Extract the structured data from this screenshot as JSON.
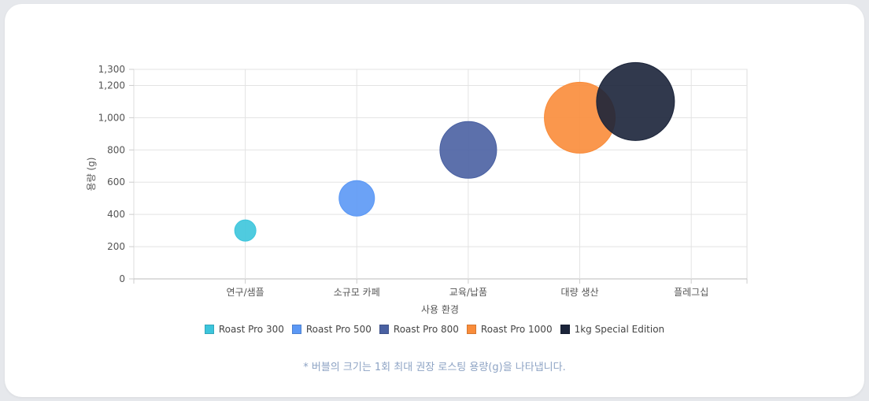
{
  "chart_data": {
    "type": "bubble",
    "xlabel": "사용 환경",
    "ylabel": "용량 (g)",
    "categories": [
      "연구/샘플",
      "소규모 카페",
      "교육/납품",
      "대량 생산",
      "플레그십"
    ],
    "ylim": [
      0,
      1300
    ],
    "yticks": [
      "0",
      "200",
      "400",
      "600",
      "800",
      "1,000",
      "1,200",
      "1,300"
    ],
    "ytick_values": [
      0,
      200,
      400,
      600,
      800,
      1000,
      1200,
      1300
    ],
    "grid": true,
    "legend_position": "bottom",
    "series": [
      {
        "name": "Roast Pro 300",
        "x": 1,
        "y": 300,
        "color": "#3cc5dc"
      },
      {
        "name": "Roast Pro 500",
        "x": 2,
        "y": 500,
        "color": "#5b98f5"
      },
      {
        "name": "Roast Pro 800",
        "x": 3,
        "y": 800,
        "color": "#4a61a2"
      },
      {
        "name": "Roast Pro 1000",
        "x": 4,
        "y": 1000,
        "color": "#f98c3a"
      },
      {
        "name": "1kg Special Edition",
        "x": 4.5,
        "y": 1100,
        "color": "#1b243a"
      }
    ]
  },
  "footnote": "* 버블의 크기는 1회 최대 권장 로스팅 용량(g)을 나타냅니다."
}
